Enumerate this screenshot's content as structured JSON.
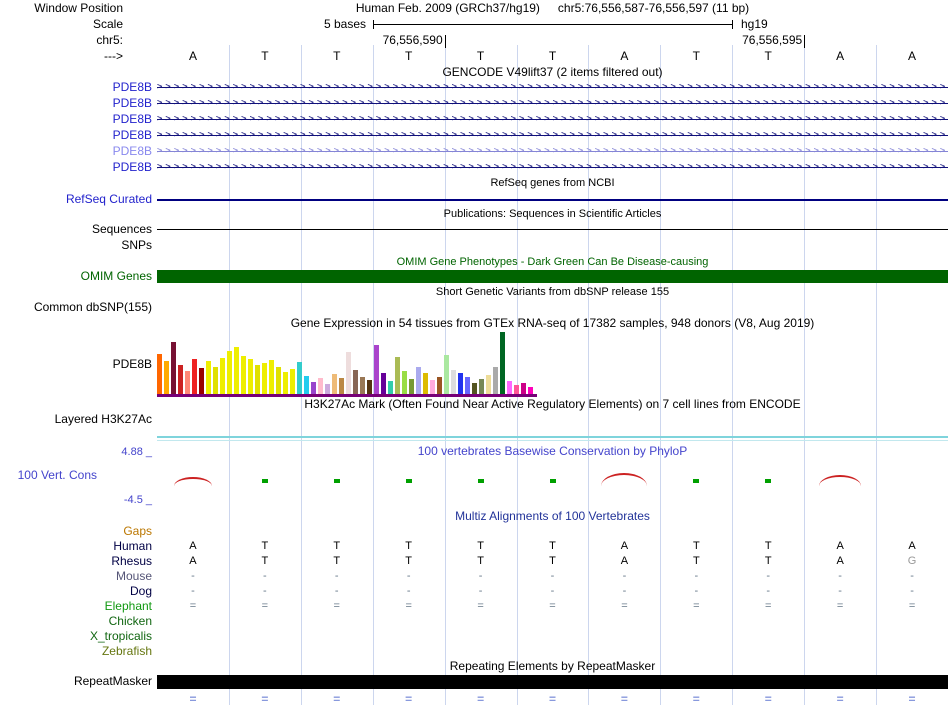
{
  "header": {
    "window_position_label": "Window Position",
    "assembly": "Human Feb. 2009 (GRCh37/hg19)",
    "position": "chr5:76,556,587-76,556,597 (11 bp)",
    "scale_label": "Scale",
    "scale_text": "5 bases",
    "assembly_short": "hg19",
    "chrom_label": "chr5:",
    "strand_label": "--->",
    "coord_ticks": [
      {
        "text": "76,556,590",
        "col": 4
      },
      {
        "text": "76,556,595",
        "col": 9
      }
    ]
  },
  "sequence": [
    "A",
    "T",
    "T",
    "T",
    "T",
    "T",
    "A",
    "T",
    "T",
    "A",
    "A"
  ],
  "tracks": {
    "gencode": {
      "title": "GENCODE V49lift37 (2 items filtered out)",
      "items": [
        {
          "label": "PDE8B",
          "label_color": "#2222CC",
          "color": "#10107A"
        },
        {
          "label": "PDE8B",
          "label_color": "#2222CC",
          "color": "#10107A"
        },
        {
          "label": "PDE8B",
          "label_color": "#2222CC",
          "color": "#10107A"
        },
        {
          "label": "PDE8B",
          "label_color": "#2222CC",
          "color": "#10107A"
        },
        {
          "label": "PDE8B",
          "label_color": "#8888EE",
          "color": "#8585D6"
        },
        {
          "label": "PDE8B",
          "label_color": "#2222CC",
          "color": "#10107A"
        }
      ]
    },
    "refseq": {
      "title": "RefSeq genes from NCBI",
      "label": "RefSeq Curated"
    },
    "publications": {
      "title": "Publications: Sequences in Scientific Articles",
      "label": "Sequences"
    },
    "snps": {
      "label": "SNPs"
    },
    "omim": {
      "title": "OMIM Gene Phenotypes - Dark Green Can Be Disease-causing",
      "label": "OMIM Genes",
      "color": "#006400"
    },
    "dbsnp": {
      "title": "Short Genetic Variants from dbSNP release 155",
      "label": "Common dbSNP(155)"
    },
    "gtex": {
      "title": "Gene Expression in 54 tissues from GTEx RNA-seq of 17382 samples, 948 donors (V8, Aug 2019)",
      "label": "PDE8B"
    },
    "h3k27ac": {
      "title": "H3K27Ac Mark (Often Found Near Active Regulatory Elements) on 7 cell lines from ENCODE",
      "label": "Layered H3K27Ac"
    },
    "conservation": {
      "title": "100 vertebrates Basewise Conservation by PhyloP",
      "label": "100 Vert. Cons",
      "max_label": "4.88 _",
      "min_label": "-4.5 _",
      "marks": [
        {
          "col": 0,
          "type": "arc",
          "w": 38,
          "h": 7
        },
        {
          "col": 1,
          "type": "tick"
        },
        {
          "col": 2,
          "type": "tick"
        },
        {
          "col": 3,
          "type": "tick"
        },
        {
          "col": 4,
          "type": "tick"
        },
        {
          "col": 5,
          "type": "tick"
        },
        {
          "col": 6,
          "type": "arc",
          "w": 46,
          "h": 11
        },
        {
          "col": 7,
          "type": "tick"
        },
        {
          "col": 8,
          "type": "tick"
        },
        {
          "col": 9,
          "type": "arc",
          "w": 42,
          "h": 9
        }
      ]
    },
    "multiz": {
      "title": "Multiz Alignments of 100 Vertebrates",
      "species": [
        {
          "name": "Gaps",
          "label_color": "#BB7700",
          "cells": [
            "",
            "",
            "",
            "",
            "",
            "",
            "",
            "",
            "",
            "",
            ""
          ]
        },
        {
          "name": "Human",
          "label_color": "#000044",
          "cell_color": "#000000",
          "cells": [
            "A",
            "T",
            "T",
            "T",
            "T",
            "T",
            "A",
            "T",
            "T",
            "A",
            "A"
          ]
        },
        {
          "name": "Rhesus",
          "label_color": "#000044",
          "cell_color": "#000000",
          "muted_color": "#999999",
          "muted_cols": [
            10
          ],
          "cells": [
            "A",
            "T",
            "T",
            "T",
            "T",
            "T",
            "A",
            "T",
            "T",
            "A",
            "G"
          ]
        },
        {
          "name": "Mouse",
          "label_color": "#555577",
          "cell_color": "#667788",
          "cells": [
            "-",
            "-",
            "-",
            "-",
            "-",
            "-",
            "-",
            "-",
            "-",
            "-",
            "-"
          ]
        },
        {
          "name": "Dog",
          "label_color": "#000044",
          "cell_color": "#667788",
          "cells": [
            "-",
            "-",
            "-",
            "-",
            "-",
            "-",
            "-",
            "-",
            "-",
            "-",
            "-"
          ]
        },
        {
          "name": "Elephant",
          "label_color": "#119911",
          "cell_color": "#667788",
          "cells": [
            "=",
            "=",
            "=",
            "=",
            "=",
            "=",
            "=",
            "=",
            "=",
            "=",
            "="
          ]
        },
        {
          "name": "Chicken",
          "label_color": "#116611",
          "cells": [
            "",
            "",
            "",
            "",
            "",
            "",
            "",
            "",
            "",
            "",
            ""
          ]
        },
        {
          "name": "X_tropicalis",
          "label_color": "#116611",
          "cells": [
            "",
            "",
            "",
            "",
            "",
            "",
            "",
            "",
            "",
            "",
            ""
          ]
        },
        {
          "name": "Zebrafish",
          "label_color": "#667711",
          "cells": [
            "",
            "",
            "",
            "",
            "",
            "",
            "",
            "",
            "",
            "",
            ""
          ]
        }
      ]
    },
    "repeatmasker": {
      "title": "Repeating Elements by RepeatMasker",
      "label": "RepeatMasker"
    }
  },
  "bottom_row": {
    "color": "#8899DD",
    "cells": [
      "=",
      "=",
      "=",
      "=",
      "=",
      "=",
      "=",
      "=",
      "=",
      "=",
      "="
    ]
  },
  "chart_data": {
    "type": "bar",
    "title": "Gene Expression in 54 tissues from GTEx RNA-seq of 17382 samples, 948 donors (V8, Aug 2019)",
    "gene": "PDE8B",
    "units": "bar heights in pixels (no numeric axis shown)",
    "baseline_color": "#770077",
    "bars": [
      [
        "#FF6600",
        40
      ],
      [
        "#FFAA00",
        33
      ],
      [
        "#771133",
        52
      ],
      [
        "#CC2222",
        29
      ],
      [
        "#FF8877",
        23
      ],
      [
        "#EE2222",
        35
      ],
      [
        "#990000",
        26
      ],
      [
        "#EEEE00",
        33
      ],
      [
        "#E0E000",
        27
      ],
      [
        "#EEEE00",
        36
      ],
      [
        "#EEEE00",
        43
      ],
      [
        "#EEEE00",
        47
      ],
      [
        "#EEEE00",
        38
      ],
      [
        "#EEEE00",
        35
      ],
      [
        "#E0E000",
        29
      ],
      [
        "#EEEE00",
        31
      ],
      [
        "#EEEE00",
        34
      ],
      [
        "#E0E000",
        27
      ],
      [
        "#EEEE00",
        22
      ],
      [
        "#EEEE00",
        25
      ],
      [
        "#33CCCC",
        32
      ],
      [
        "#22CCEE",
        18
      ],
      [
        "#9944CC",
        12
      ],
      [
        "#FFBBCC",
        16
      ],
      [
        "#CCAADD",
        10
      ],
      [
        "#EEBB77",
        20
      ],
      [
        "#BB8844",
        16
      ],
      [
        "#EEDDDD",
        42
      ],
      [
        "#886655",
        24
      ],
      [
        "#997755",
        17
      ],
      [
        "#553311",
        14
      ],
      [
        "#AA44CC",
        49
      ],
      [
        "#660099",
        21
      ],
      [
        "#33CCAA",
        13
      ],
      [
        "#AABB55",
        37
      ],
      [
        "#99DD44",
        23
      ],
      [
        "#779933",
        15
      ],
      [
        "#AAAAEE",
        27
      ],
      [
        "#DDBB00",
        21
      ],
      [
        "#FFAADD",
        14
      ],
      [
        "#995522",
        17
      ],
      [
        "#AAE8A0",
        39
      ],
      [
        "#DDDDDD",
        24
      ],
      [
        "#2233EE",
        21
      ],
      [
        "#6666FF",
        17
      ],
      [
        "#555522",
        11
      ],
      [
        "#778855",
        15
      ],
      [
        "#EEDD99",
        19
      ],
      [
        "#AAAAAA",
        27
      ],
      [
        "#006622",
        62
      ],
      [
        "#FF66FF",
        13
      ],
      [
        "#FF5599",
        9
      ],
      [
        "#CC0088",
        11
      ],
      [
        "#FF00BB",
        7
      ]
    ]
  }
}
